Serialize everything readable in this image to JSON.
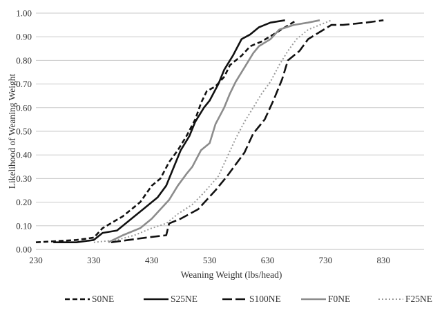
{
  "chart_data": {
    "type": "line",
    "xlabel": "Weaning Weight (lbs/head)",
    "ylabel": "Likelihood of Weaning Weight",
    "xlim": [
      230,
      900
    ],
    "ylim": [
      0,
      1
    ],
    "x_ticks": [
      "230",
      "330",
      "430",
      "530",
      "630",
      "730",
      "830"
    ],
    "y_ticks": [
      "0.00",
      "0.10",
      "0.20",
      "0.30",
      "0.40",
      "0.50",
      "0.60",
      "0.70",
      "0.80",
      "0.90",
      "1.00"
    ],
    "grid": "horizontal",
    "legend_position": "bottom",
    "series": [
      {
        "name": "S0NE",
        "color": "#111111",
        "dash": "dashed",
        "points": [
          [
            230,
            0.03
          ],
          [
            300,
            0.04
          ],
          [
            330,
            0.05
          ],
          [
            345,
            0.09
          ],
          [
            380,
            0.14
          ],
          [
            410,
            0.2
          ],
          [
            430,
            0.27
          ],
          [
            445,
            0.3
          ],
          [
            460,
            0.37
          ],
          [
            475,
            0.42
          ],
          [
            490,
            0.48
          ],
          [
            505,
            0.55
          ],
          [
            515,
            0.62
          ],
          [
            525,
            0.67
          ],
          [
            540,
            0.69
          ],
          [
            555,
            0.73
          ],
          [
            565,
            0.78
          ],
          [
            585,
            0.82
          ],
          [
            600,
            0.86
          ],
          [
            620,
            0.88
          ],
          [
            640,
            0.91
          ],
          [
            660,
            0.94
          ],
          [
            680,
            0.97
          ]
        ]
      },
      {
        "name": "S25NE",
        "color": "#111111",
        "dash": "solid",
        "points": [
          [
            260,
            0.03
          ],
          [
            300,
            0.03
          ],
          [
            330,
            0.04
          ],
          [
            345,
            0.07
          ],
          [
            370,
            0.08
          ],
          [
            395,
            0.13
          ],
          [
            415,
            0.17
          ],
          [
            440,
            0.22
          ],
          [
            455,
            0.27
          ],
          [
            465,
            0.33
          ],
          [
            480,
            0.42
          ],
          [
            495,
            0.48
          ],
          [
            505,
            0.54
          ],
          [
            520,
            0.6
          ],
          [
            530,
            0.63
          ],
          [
            545,
            0.7
          ],
          [
            555,
            0.76
          ],
          [
            570,
            0.82
          ],
          [
            585,
            0.89
          ],
          [
            600,
            0.91
          ],
          [
            615,
            0.94
          ],
          [
            635,
            0.96
          ],
          [
            660,
            0.97
          ]
        ]
      },
      {
        "name": "S100NE",
        "color": "#111111",
        "dash": "longdash",
        "points": [
          [
            360,
            0.03
          ],
          [
            390,
            0.04
          ],
          [
            420,
            0.05
          ],
          [
            455,
            0.06
          ],
          [
            460,
            0.11
          ],
          [
            480,
            0.13
          ],
          [
            510,
            0.17
          ],
          [
            525,
            0.21
          ],
          [
            540,
            0.25
          ],
          [
            560,
            0.31
          ],
          [
            575,
            0.36
          ],
          [
            590,
            0.41
          ],
          [
            605,
            0.49
          ],
          [
            625,
            0.55
          ],
          [
            640,
            0.63
          ],
          [
            655,
            0.72
          ],
          [
            665,
            0.8
          ],
          [
            685,
            0.84
          ],
          [
            700,
            0.89
          ],
          [
            720,
            0.92
          ],
          [
            740,
            0.95
          ],
          [
            760,
            0.95
          ],
          [
            800,
            0.96
          ],
          [
            830,
            0.97
          ]
        ]
      },
      {
        "name": "F0NE",
        "color": "#8c8c8c",
        "dash": "solid",
        "points": [
          [
            355,
            0.03
          ],
          [
            380,
            0.06
          ],
          [
            410,
            0.09
          ],
          [
            430,
            0.13
          ],
          [
            445,
            0.17
          ],
          [
            460,
            0.21
          ],
          [
            475,
            0.27
          ],
          [
            490,
            0.32
          ],
          [
            500,
            0.35
          ],
          [
            515,
            0.42
          ],
          [
            530,
            0.45
          ],
          [
            540,
            0.53
          ],
          [
            555,
            0.6
          ],
          [
            565,
            0.66
          ],
          [
            575,
            0.71
          ],
          [
            590,
            0.77
          ],
          [
            605,
            0.83
          ],
          [
            615,
            0.86
          ],
          [
            635,
            0.89
          ],
          [
            650,
            0.93
          ],
          [
            675,
            0.95
          ],
          [
            700,
            0.96
          ],
          [
            720,
            0.97
          ]
        ]
      },
      {
        "name": "F25NE",
        "color": "#999999",
        "dash": "dotted",
        "points": [
          [
            330,
            0.03
          ],
          [
            370,
            0.04
          ],
          [
            400,
            0.06
          ],
          [
            430,
            0.09
          ],
          [
            455,
            0.11
          ],
          [
            475,
            0.15
          ],
          [
            500,
            0.19
          ],
          [
            520,
            0.24
          ],
          [
            545,
            0.31
          ],
          [
            560,
            0.39
          ],
          [
            575,
            0.47
          ],
          [
            590,
            0.54
          ],
          [
            605,
            0.6
          ],
          [
            620,
            0.66
          ],
          [
            635,
            0.71
          ],
          [
            650,
            0.78
          ],
          [
            665,
            0.84
          ],
          [
            680,
            0.89
          ],
          [
            700,
            0.93
          ],
          [
            720,
            0.95
          ],
          [
            740,
            0.97
          ]
        ]
      }
    ]
  }
}
